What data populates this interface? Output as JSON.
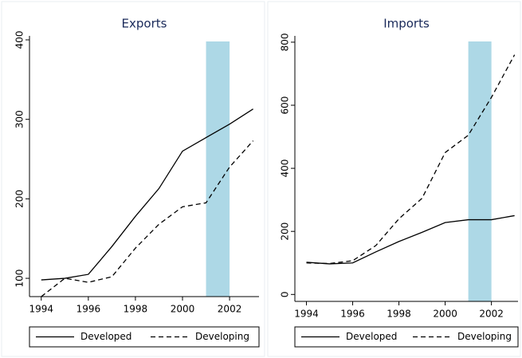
{
  "chart_data": [
    {
      "type": "line",
      "title": "Exports",
      "x": [
        1994,
        1995,
        1996,
        1997,
        1998,
        1999,
        2000,
        2001,
        2002,
        2003
      ],
      "series": [
        {
          "name": "Developed",
          "color": "#000000",
          "style": "solid",
          "values": [
            98,
            100,
            105,
            140,
            178,
            213,
            260,
            277,
            294,
            313
          ]
        },
        {
          "name": "Developing",
          "color": "#000000",
          "style": "dashed",
          "values": [
            77,
            100,
            95,
            102,
            138,
            168,
            190,
            195,
            240,
            273
          ]
        }
      ],
      "shaded_region": [
        2001,
        2002
      ],
      "shade_color": "#add8e6",
      "xlim": [
        1993.5,
        2003.25
      ],
      "ylim": [
        77,
        405
      ],
      "xticks": [
        1994,
        1996,
        1998,
        2000,
        2002
      ],
      "yticks": [
        100,
        200,
        300,
        400
      ]
    },
    {
      "type": "line",
      "title": "Imports",
      "x": [
        1994,
        1995,
        1996,
        1997,
        1998,
        1999,
        2000,
        2001,
        2002,
        2003
      ],
      "series": [
        {
          "name": "Developed",
          "color": "#000000",
          "style": "solid",
          "values": [
            102,
            97,
            100,
            135,
            168,
            197,
            228,
            237,
            237,
            250
          ]
        },
        {
          "name": "Developing",
          "color": "#000000",
          "style": "dashed",
          "values": [
            100,
            98,
            107,
            155,
            240,
            305,
            450,
            505,
            625,
            760
          ]
        }
      ],
      "shaded_region": [
        2001,
        2002
      ],
      "shade_color": "#add8e6",
      "xlim": [
        1993.5,
        2003.15
      ],
      "ylim": [
        -22,
        820
      ],
      "xticks": [
        1994,
        1996,
        1998,
        2000,
        2002
      ],
      "yticks": [
        0,
        200,
        400,
        600,
        800
      ]
    }
  ]
}
